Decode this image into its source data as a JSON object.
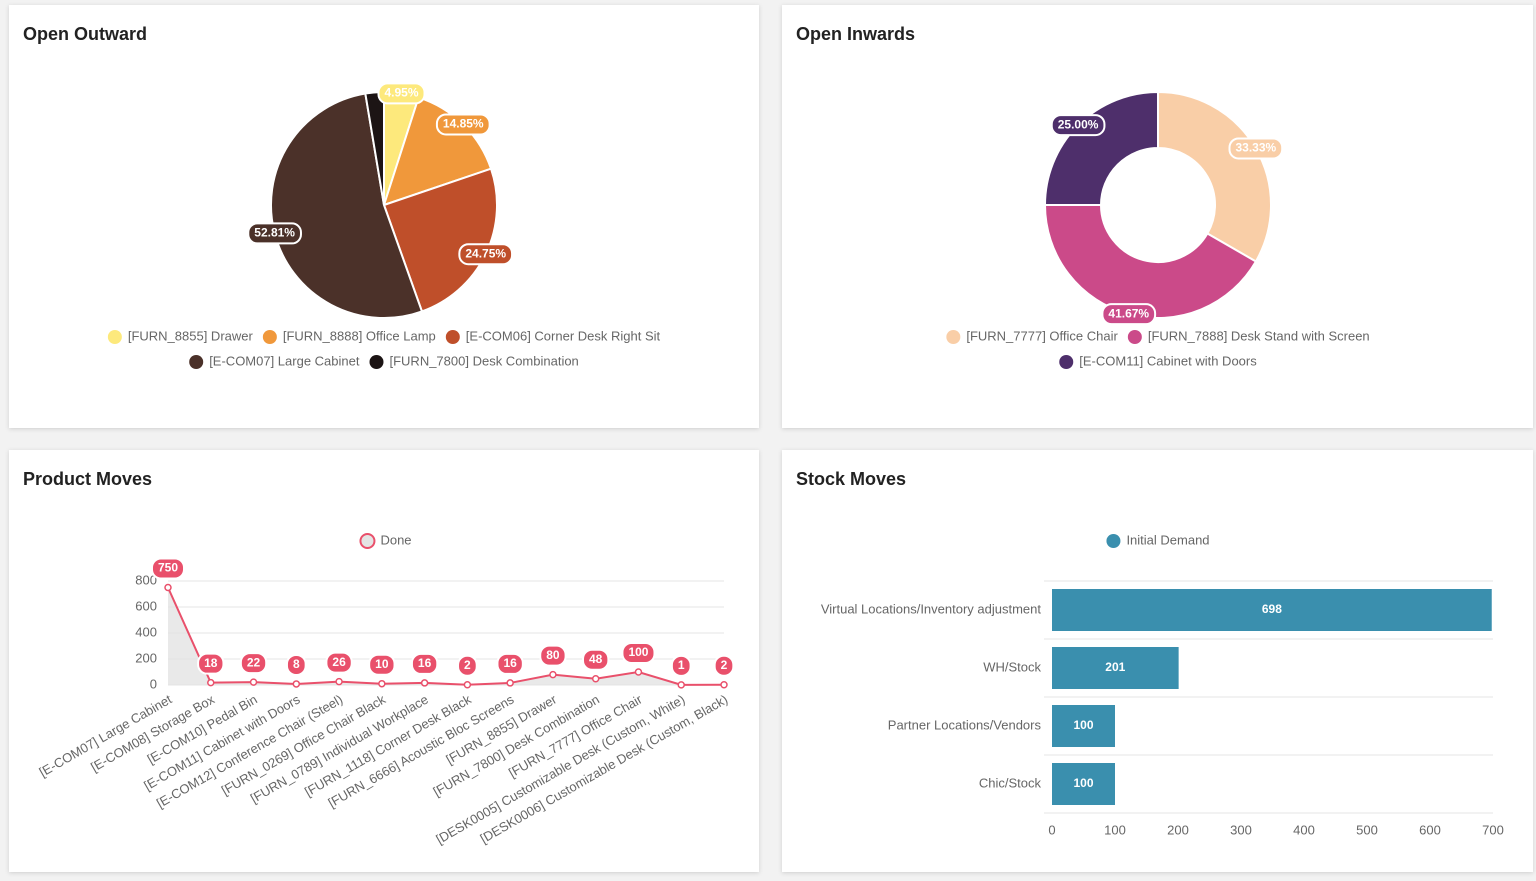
{
  "chart_data": [
    {
      "type": "pie",
      "title": "Open Outward",
      "categories": [
        "[FURN_8855] Drawer",
        "[FURN_8888] Office Lamp",
        "[E-COM06] Corner Desk Right Sit",
        "[E-COM07] Large Cabinet",
        "[FURN_7800] Desk Combination"
      ],
      "values": [
        4.95,
        14.85,
        24.75,
        52.81,
        2.64
      ],
      "value_labels": [
        "4.95%",
        "14.85%",
        "24.75%",
        "52.81%",
        null
      ],
      "colors": [
        "#fde97c",
        "#f0983b",
        "#bf4f2a",
        "#4b3129",
        "#1c1414"
      ]
    },
    {
      "type": "doughnut",
      "title": "Open Inwards",
      "categories": [
        "[FURN_7777] Office Chair",
        "[FURN_7888] Desk Stand with Screen",
        "[E-COM11] Cabinet with Doors"
      ],
      "values": [
        33.33,
        41.67,
        25.0
      ],
      "value_labels": [
        "33.33%",
        "41.67%",
        "25.00%"
      ],
      "colors": [
        "#f9cea7",
        "#cb4a89",
        "#4e2f6b"
      ]
    },
    {
      "type": "line",
      "title": "Product Moves",
      "categories": [
        "[E-COM07] Large Cabinet",
        "[E-COM08] Storage Box",
        "[E-COM10] Pedal Bin",
        "[E-COM11] Cabinet with Doors",
        "[E-COM12] Conference Chair (Steel)",
        "[FURN_0269] Office Chair Black",
        "[FURN_0789] Individual Workplace",
        "[FURN_1118] Corner Desk Black",
        "[FURN_6666] Acoustic Bloc Screens",
        "[FURN_8855] Drawer",
        "[FURN_7800] Desk Combination",
        "[FURN_7777] Office Chair",
        "[DESK0005] Customizable Desk (Custom, White)",
        "[DESK0006] Customizable Desk (Custom, Black)"
      ],
      "series": [
        {
          "name": "Done",
          "color": "#e9506b",
          "values": [
            750,
            18,
            22,
            8,
            26,
            10,
            16,
            2,
            16,
            80,
            48,
            100,
            1,
            2
          ]
        }
      ],
      "ylim": [
        0,
        800
      ],
      "yticks": [
        0,
        200,
        400,
        600,
        800
      ],
      "grid": true
    },
    {
      "type": "hbar",
      "title": "Stock Moves",
      "categories": [
        "Virtual Locations/Inventory adjustment",
        "WH/Stock",
        "Partner Locations/Vendors",
        "Chic/Stock"
      ],
      "series": [
        {
          "name": "Initial Demand",
          "color": "#3a8fae",
          "values": [
            698,
            201,
            100,
            100
          ]
        }
      ],
      "xlim": [
        0,
        700
      ],
      "xticks": [
        0,
        100,
        200,
        300,
        400,
        500,
        600,
        700
      ]
    }
  ]
}
